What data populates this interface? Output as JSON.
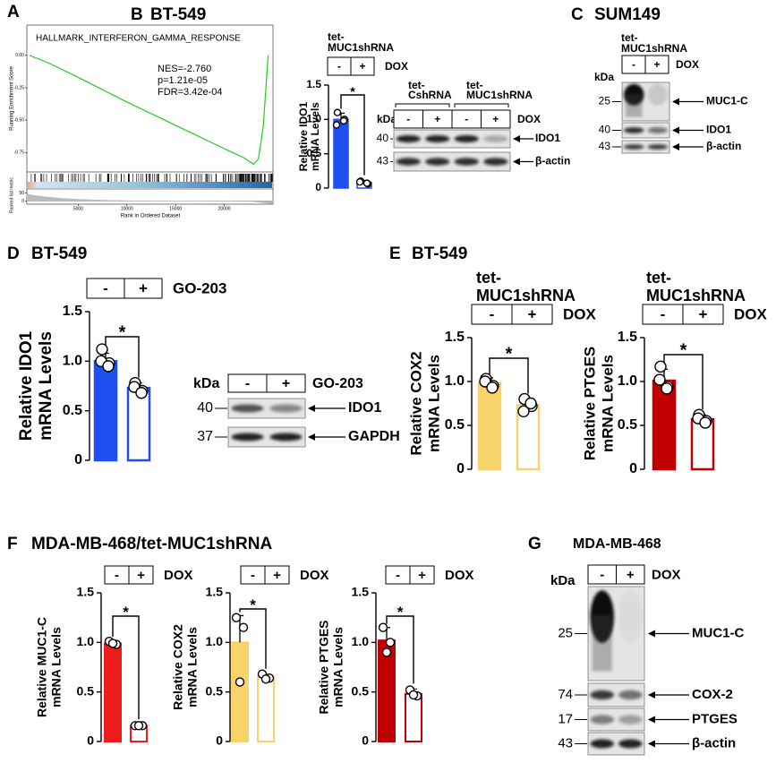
{
  "panels": [
    {
      "letter": "A"
    },
    {
      "letter": "B",
      "title": "BT-549"
    },
    {
      "letter": "C",
      "title": "SUM149"
    },
    {
      "letter": "D",
      "title": "BT-549"
    },
    {
      "letter": "E",
      "title": "BT-549"
    },
    {
      "letter": "F",
      "title": "MDA-MB-468/tet-MUC1shRNA"
    },
    {
      "letter": "G",
      "title": "MDA-MB-468"
    }
  ],
  "gsea": {
    "type": "line",
    "title": "HALLMARK_INTERFERON_GAMMA_RESPONSE",
    "ylabel": "Running Enrichment Score",
    "ranked_ylabel": "Ranked list metric",
    "xlabel": "Rank in Ordered Dataset",
    "annotations": [
      "NES=-2.760",
      "p=1.21e-05",
      "FDR=3.42e-04"
    ],
    "color": "#22cc22",
    "x": [
      0,
      2000,
      5000,
      10000,
      15000,
      20000,
      22000,
      23000,
      23500,
      24000,
      24500
    ],
    "values": [
      0,
      -0.06,
      -0.17,
      -0.36,
      -0.54,
      -0.72,
      -0.79,
      -0.84,
      -0.8,
      -0.55,
      0
    ],
    "xlim": [
      0,
      25000
    ],
    "ylim": [
      -0.9,
      0.22
    ],
    "xticks": [
      5000,
      10000,
      15000,
      20000
    ],
    "yticks": [
      {
        "value": 0,
        "label": "0.00"
      },
      {
        "value": -0.25,
        "label": "-0.25"
      },
      {
        "value": -0.5,
        "label": "-0.50"
      },
      {
        "value": -0.75,
        "label": "-0.75"
      }
    ],
    "ranked_ylim": [
      -20,
      70
    ],
    "ranked_yticks": [
      50,
      0
    ]
  },
  "chart_data": [
    {
      "type": "bar",
      "header": [
        "tet-",
        "MUC1shRNA"
      ],
      "treatment": "DOX",
      "categories": [
        "-",
        "+"
      ],
      "ylabel": [
        "Relative IDO1",
        "mRNA Levels"
      ],
      "color": "#1f4ff0",
      "values": [
        1.0,
        0.08
      ],
      "errors": [
        0.09,
        0.03
      ],
      "points": [
        [
          1.1,
          1.0,
          0.92,
          0.98
        ],
        [
          0.1,
          0.06,
          0.09,
          0.07
        ]
      ],
      "significance": "*",
      "ylim": [
        0,
        1.5
      ],
      "yticks": [
        0,
        0.5,
        {
          "value": 1,
          "label": "1.0"
        },
        1.5
      ]
    },
    {
      "type": "bar",
      "treatment": "GO-203",
      "categories": [
        "-",
        "+"
      ],
      "ylabel": [
        "Relative IDO1",
        "mRNA Levels"
      ],
      "color": "#1f4ff0",
      "values": [
        1.0,
        0.73
      ],
      "errors": [
        0.08,
        0.05
      ],
      "points": [
        [
          1.12,
          0.98,
          1.0,
          0.95
        ],
        [
          0.78,
          0.7,
          0.74,
          0.68
        ]
      ],
      "significance": "*",
      "ylim": [
        0,
        1.5
      ],
      "yticks": [
        0,
        0.5,
        {
          "value": 1,
          "label": "1.0"
        },
        1.5
      ]
    },
    {
      "type": "bar",
      "header": [
        "tet-",
        "MUC1shRNA"
      ],
      "treatment": "DOX",
      "categories": [
        "-",
        "+"
      ],
      "ylabel": [
        "Relative COX2",
        "mRNA Levels"
      ],
      "color": "#f8d26a",
      "values": [
        0.98,
        0.73
      ],
      "errors": [
        0.06,
        0.07
      ],
      "points": [
        [
          1.03,
          0.95,
          1.0,
          0.93
        ],
        [
          0.8,
          0.72,
          0.66,
          0.75
        ]
      ],
      "significance": "*",
      "ylim": [
        0,
        1.5
      ],
      "yticks": [
        0,
        0.5,
        {
          "value": 1,
          "label": "1.0"
        },
        1.5
      ]
    },
    {
      "type": "bar",
      "header": [
        "tet-",
        "MUC1shRNA"
      ],
      "treatment": "DOX",
      "categories": [
        "-",
        "+"
      ],
      "ylabel": [
        "Relative PTGES",
        "mRNA Levels"
      ],
      "color": "#c00000",
      "values": [
        1.01,
        0.57
      ],
      "errors": [
        0.13,
        0.05
      ],
      "points": [
        [
          1.17,
          0.94,
          1.02,
          0.92
        ],
        [
          0.62,
          0.55,
          0.58,
          0.53
        ]
      ],
      "significance": "*",
      "ylim": [
        0,
        1.5
      ],
      "yticks": [
        0,
        0.5,
        {
          "value": 1,
          "label": "1.0"
        },
        1.5
      ]
    },
    {
      "type": "bar",
      "treatment": "DOX",
      "categories": [
        "-",
        "+"
      ],
      "ylabel": [
        "Relative MUC1-C",
        "mRNA Levels"
      ],
      "color": "#ee1c1c",
      "values": [
        0.99,
        0.16
      ],
      "errors": [
        0.03,
        0.01
      ],
      "points": [
        [
          1.01,
          0.98,
          0.99
        ],
        [
          0.16,
          0.16,
          0.16
        ]
      ],
      "significance": "*",
      "ylim": [
        0,
        1.5
      ],
      "yticks": [
        0,
        0.5,
        {
          "value": 1,
          "label": "1.0"
        },
        1.5
      ]
    },
    {
      "type": "bar",
      "treatment": "DOX",
      "categories": [
        "-",
        "+"
      ],
      "ylabel": [
        "Relative COX2",
        "mRNA Levels"
      ],
      "color": "#f8d26a",
      "values": [
        1.0,
        0.65
      ],
      "errors": [
        0.27,
        0.03
      ],
      "points": [
        [
          1.25,
          1.15,
          0.6
        ],
        [
          0.68,
          0.64,
          0.63
        ]
      ],
      "significance": "*",
      "ylim": [
        0,
        1.5
      ],
      "yticks": [
        0,
        0.5,
        {
          "value": 1,
          "label": "1.0"
        },
        1.5
      ]
    },
    {
      "type": "bar",
      "treatment": "DOX",
      "categories": [
        "-",
        "+"
      ],
      "ylabel": [
        "Relative PTGES",
        "mRNA Levels"
      ],
      "color": "#c00000",
      "values": [
        1.02,
        0.48
      ],
      "errors": [
        0.13,
        0.05
      ],
      "points": [
        [
          1.15,
          1.0,
          0.9
        ],
        [
          0.52,
          0.46,
          0.47
        ]
      ],
      "significance": "*",
      "ylim": [
        0,
        1.5
      ],
      "yticks": [
        0,
        0.5,
        {
          "value": 1,
          "label": "1.0"
        },
        1.5
      ]
    }
  ],
  "blots": [
    {
      "groups": [
        [
          "tet-",
          "CshRNA"
        ],
        [
          "tet-",
          "MUC1shRNA"
        ]
      ],
      "kda_label": "kDa",
      "lanes": [
        "-",
        "+",
        "-",
        "+"
      ],
      "treatment": "DOX",
      "rows": [
        {
          "marker": "40",
          "protein": "IDO1"
        },
        {
          "marker": "43",
          "protein": "β-actin"
        }
      ]
    },
    {
      "groups": [
        [
          "tet-",
          "MUC1shRNA"
        ]
      ],
      "kda_label": "kDa",
      "lanes": [
        "-",
        "+"
      ],
      "treatment": "DOX",
      "rows": [
        {
          "marker": "25",
          "protein": "MUC1-C"
        },
        {
          "marker": "40",
          "protein": "IDO1"
        },
        {
          "marker": "43",
          "protein": "β-actin"
        }
      ]
    },
    {
      "kda_label": "kDa",
      "lanes": [
        "-",
        "+"
      ],
      "treatment": "GO-203",
      "rows": [
        {
          "marker": "40",
          "protein": "IDO1"
        },
        {
          "marker": "37",
          "protein": "GAPDH"
        }
      ]
    },
    {
      "kda_label": "kDa",
      "lanes": [
        "-",
        "+"
      ],
      "treatment": "DOX",
      "rows": [
        {
          "marker": "25",
          "protein": "MUC1-C"
        },
        {
          "marker": "74",
          "protein": "COX-2"
        },
        {
          "marker": "17",
          "protein": "PTGES"
        },
        {
          "marker": "43",
          "protein": "β-actin"
        }
      ]
    }
  ]
}
